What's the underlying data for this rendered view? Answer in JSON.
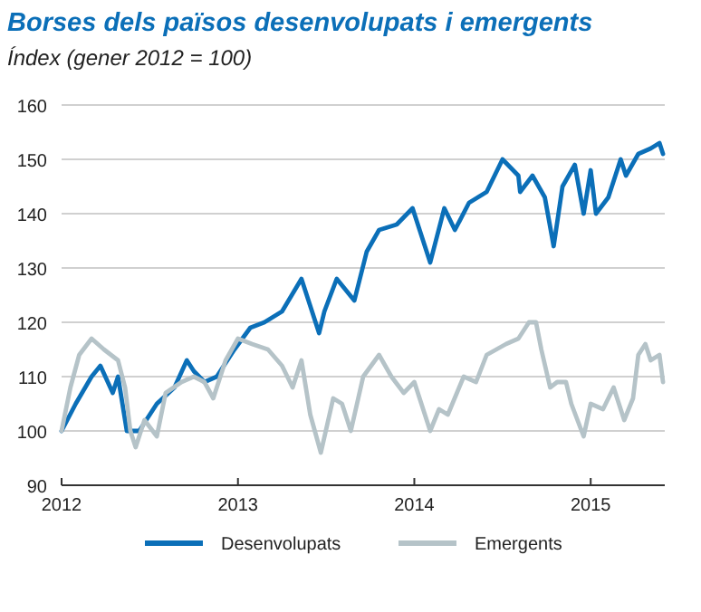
{
  "chart_data": {
    "type": "line",
    "title": "Borses dels països desenvolupats i emergents",
    "subtitle": "Índex (gener 2012 = 100)",
    "xlim": [
      2012,
      2015.42
    ],
    "xticks": [
      2012,
      2013,
      2014,
      2015
    ],
    "ylim": [
      90,
      160
    ],
    "yticks": [
      90,
      100,
      110,
      120,
      130,
      140,
      150,
      160
    ],
    "grid": "y",
    "legend": "bottom",
    "line_style": "solid",
    "marker": "none",
    "series": [
      {
        "name": "Desenvolupats",
        "color": "#0b6fb8",
        "x": [
          2012,
          2012.08,
          2012.17,
          2012.22,
          2012.29,
          2012.32,
          2012.37,
          2012.44,
          2012.54,
          2012.64,
          2012.71,
          2012.75,
          2012.81,
          2012.88,
          2012.98,
          2013.07,
          2013.15,
          2013.25,
          2013.36,
          2013.46,
          2013.49,
          2013.56,
          2013.66,
          2013.73,
          2013.8,
          2013.9,
          2013.99,
          2014.09,
          2014.17,
          2014.23,
          2014.31,
          2014.41,
          2014.5,
          2014.59,
          2014.6,
          2014.67,
          2014.74,
          2014.79,
          2014.84,
          2014.91,
          2014.96,
          2015,
          2015.03,
          2015.1,
          2015.17,
          2015.2,
          2015.27,
          2015.34,
          2015.39,
          2015.41
        ],
        "values": [
          100,
          105,
          110,
          112,
          107,
          110,
          100,
          100,
          105,
          108,
          113,
          111,
          109,
          110,
          115,
          119,
          120,
          122,
          128,
          118,
          122,
          128,
          124,
          133,
          137,
          138,
          141,
          131,
          141,
          137,
          142,
          144,
          150,
          147,
          144,
          147,
          143,
          134,
          145,
          149,
          140,
          148,
          140,
          143,
          150,
          147,
          151,
          152,
          153,
          151
        ]
      },
      {
        "name": "Emergents",
        "color": "#b5c3c8",
        "x": [
          2012,
          2012.05,
          2012.1,
          2012.17,
          2012.24,
          2012.32,
          2012.36,
          2012.39,
          2012.42,
          2012.47,
          2012.54,
          2012.59,
          2012.68,
          2012.75,
          2012.81,
          2012.86,
          2012.93,
          2013,
          2013.08,
          2013.17,
          2013.25,
          2013.31,
          2013.36,
          2013.41,
          2013.47,
          2013.54,
          2013.59,
          2013.64,
          2013.71,
          2013.8,
          2013.87,
          2013.94,
          2014,
          2014.09,
          2014.14,
          2014.19,
          2014.28,
          2014.35,
          2014.41,
          2014.52,
          2014.59,
          2014.65,
          2014.69,
          2014.72,
          2014.77,
          2014.81,
          2014.86,
          2014.89,
          2014.96,
          2015,
          2015.07,
          2015.13,
          2015.19,
          2015.24,
          2015.27,
          2015.31,
          2015.34,
          2015.39,
          2015.41
        ],
        "values": [
          100,
          108,
          114,
          117,
          115,
          113,
          108,
          100,
          97,
          102,
          99,
          107,
          109,
          110,
          109,
          106,
          113,
          117,
          116,
          115,
          112,
          108,
          113,
          103,
          96,
          106,
          105,
          100,
          110,
          114,
          110,
          107,
          109,
          100,
          104,
          103,
          110,
          109,
          114,
          116,
          117,
          120,
          120,
          115,
          108,
          109,
          109,
          105,
          99,
          105,
          104,
          108,
          102,
          106,
          114,
          116,
          113,
          114,
          109
        ]
      }
    ]
  }
}
